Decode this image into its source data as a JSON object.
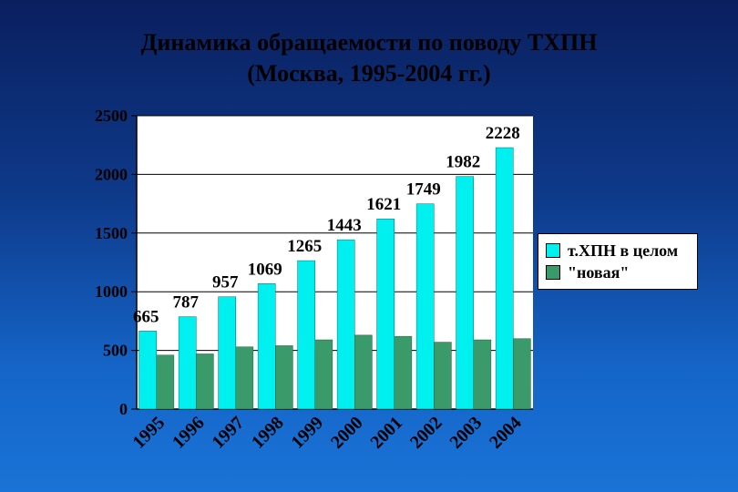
{
  "title_line1": "Динамика обращаемости по поводу ТХПН",
  "title_line2": "(Москва, 1995-2004 гг.)",
  "colors": {
    "series1": "#00f0f0",
    "series2": "#3a9a6a",
    "plot_bg": "#ffffff"
  },
  "chart_data": {
    "type": "bar",
    "title": "Динамика обращаемости по поводу ТХПН (Москва, 1995-2004 гг.)",
    "categories": [
      "1995",
      "1996",
      "1997",
      "1998",
      "1999",
      "2000",
      "2001",
      "2002",
      "2003",
      "2004"
    ],
    "series": [
      {
        "name": "т.ХПН в целом",
        "values": [
          665,
          787,
          957,
          1069,
          1265,
          1443,
          1621,
          1749,
          1982,
          2228
        ],
        "labels": [
          "665",
          "787",
          "957",
          "1069",
          "1265",
          "1443",
          "1621",
          "1749",
          "1982",
          "2228"
        ]
      },
      {
        "name": "\"новая\"",
        "values": [
          460,
          470,
          530,
          540,
          590,
          630,
          620,
          570,
          590,
          600
        ]
      }
    ],
    "ylim": [
      0,
      2500
    ],
    "yticks": [
      "0",
      "500",
      "1000",
      "1500",
      "2000",
      "2500"
    ],
    "grid": true,
    "legend_position": "right"
  }
}
